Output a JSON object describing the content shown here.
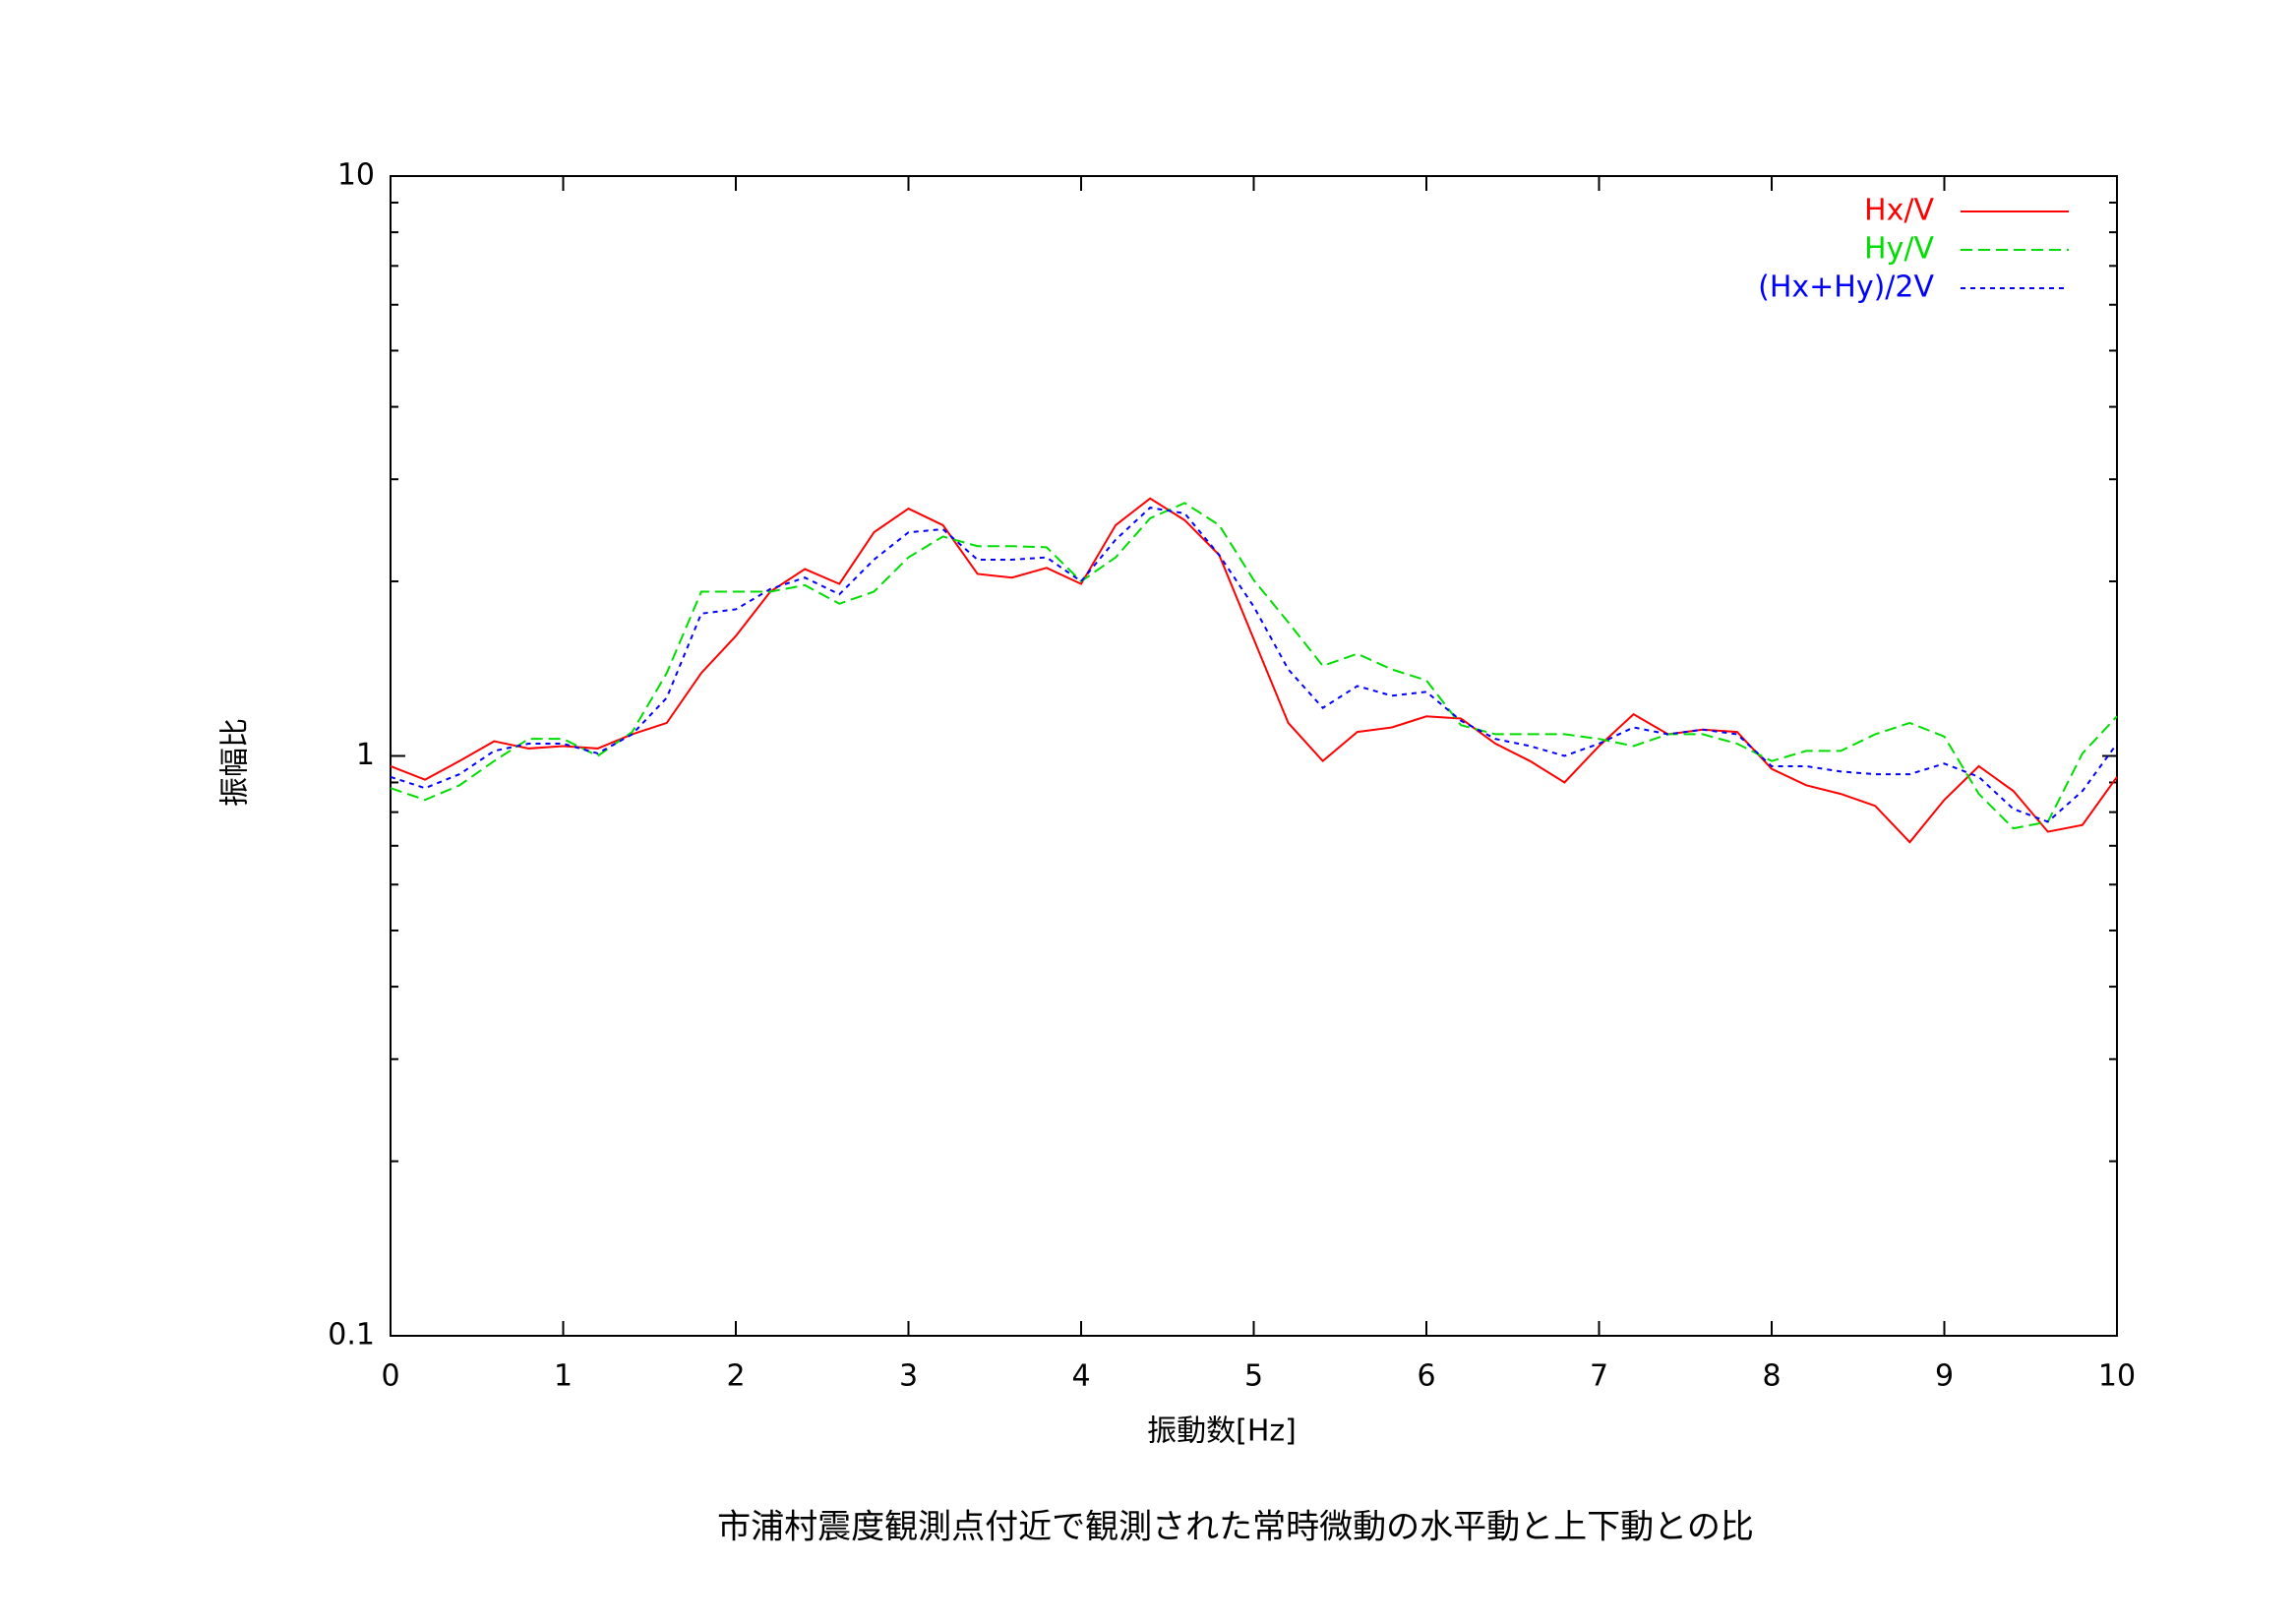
{
  "chart_data": {
    "type": "line",
    "title": "市浦村震度観測点付近で観測された常時微動の水平動と上下動との比",
    "xlabel": "振動数[Hz]",
    "ylabel": "振幅比",
    "xlim": [
      0,
      10
    ],
    "xticks": [
      0,
      1,
      2,
      3,
      4,
      5,
      6,
      7,
      8,
      9,
      10
    ],
    "ylim": [
      0.1,
      10
    ],
    "yticks": [
      0.1,
      1,
      10
    ],
    "yminorticks": [
      0.2,
      0.3,
      0.4,
      0.5,
      0.6,
      0.7,
      0.8,
      0.9,
      2,
      3,
      4,
      5,
      6,
      7,
      8,
      9
    ],
    "log_y": true,
    "legend": "top-right",
    "x": [
      0,
      0.2,
      0.4,
      0.6,
      0.8,
      1,
      1.2,
      1.4,
      1.6,
      1.8,
      2,
      2.2,
      2.4,
      2.6,
      2.8,
      3,
      3.2,
      3.4,
      3.6,
      3.8,
      4,
      4.2,
      4.4,
      4.6,
      4.8,
      5,
      5.2,
      5.4,
      5.6,
      5.8,
      6,
      6.2,
      6.4,
      6.6,
      6.8,
      7,
      7.2,
      7.4,
      7.6,
      7.8,
      8,
      8.2,
      8.4,
      8.6,
      8.8,
      9,
      9.2,
      9.4,
      9.6,
      9.8,
      10
    ],
    "series": [
      {
        "name": "Hx/V",
        "color": "#ff0000",
        "dash": "solid",
        "values": [
          0.96,
          0.91,
          0.98,
          1.06,
          1.03,
          1.04,
          1.03,
          1.09,
          1.14,
          1.39,
          1.61,
          1.92,
          2.1,
          1.98,
          2.43,
          2.67,
          2.5,
          2.06,
          2.03,
          2.11,
          1.98,
          2.5,
          2.78,
          2.55,
          2.22,
          1.59,
          1.14,
          0.98,
          1.1,
          1.12,
          1.17,
          1.16,
          1.05,
          0.98,
          0.9,
          1.04,
          1.18,
          1.09,
          1.11,
          1.1,
          0.95,
          0.89,
          0.86,
          0.82,
          0.71,
          0.84,
          0.96,
          0.87,
          0.74,
          0.76,
          0.92
        ]
      },
      {
        "name": "Hy/V",
        "color": "#00dd00",
        "dash": "dashed",
        "values": [
          0.88,
          0.84,
          0.89,
          0.98,
          1.07,
          1.07,
          1.0,
          1.1,
          1.39,
          1.92,
          1.92,
          1.92,
          1.97,
          1.83,
          1.92,
          2.2,
          2.39,
          2.3,
          2.3,
          2.29,
          2.0,
          2.2,
          2.57,
          2.73,
          2.5,
          2.01,
          1.7,
          1.43,
          1.5,
          1.41,
          1.35,
          1.13,
          1.09,
          1.09,
          1.09,
          1.07,
          1.04,
          1.09,
          1.09,
          1.05,
          0.98,
          1.02,
          1.02,
          1.09,
          1.14,
          1.08,
          0.86,
          0.75,
          0.77,
          1.01,
          1.17
        ]
      },
      {
        "name": "(Hx+Hy)/2V",
        "color": "#0000ff",
        "dash": "dotted",
        "values": [
          0.92,
          0.88,
          0.93,
          1.02,
          1.05,
          1.05,
          1.01,
          1.09,
          1.26,
          1.76,
          1.79,
          1.94,
          2.03,
          1.9,
          2.18,
          2.43,
          2.46,
          2.18,
          2.18,
          2.2,
          2.0,
          2.36,
          2.68,
          2.62,
          2.22,
          1.81,
          1.41,
          1.21,
          1.32,
          1.27,
          1.29,
          1.15,
          1.07,
          1.04,
          1.0,
          1.05,
          1.12,
          1.09,
          1.11,
          1.09,
          0.96,
          0.96,
          0.94,
          0.93,
          0.93,
          0.97,
          0.92,
          0.81,
          0.77,
          0.87,
          1.05
        ]
      }
    ]
  }
}
